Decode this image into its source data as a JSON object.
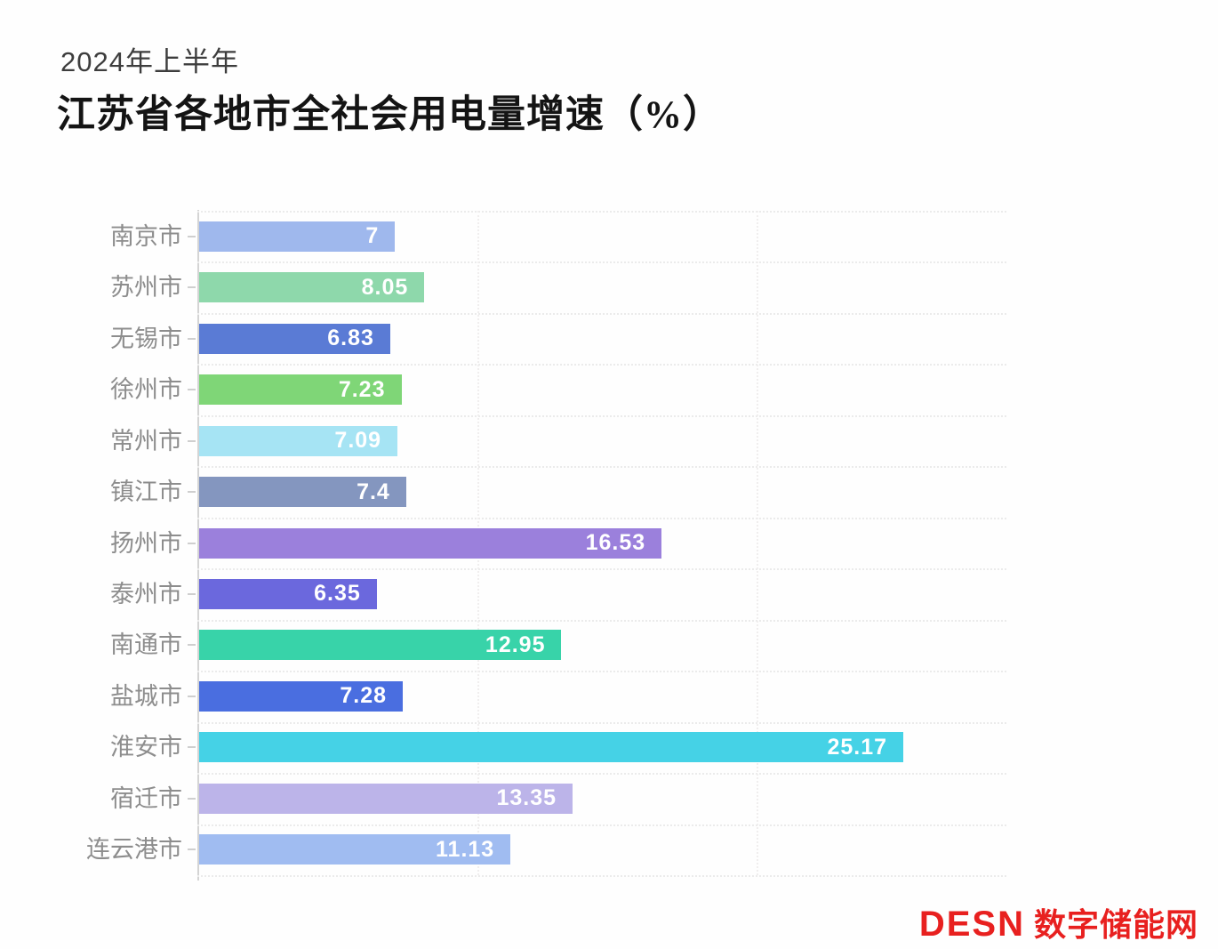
{
  "header": {
    "subtitle": "2024年上半年",
    "title": "江苏省各地市全社会用电量增速（%）"
  },
  "chart_data": {
    "type": "bar",
    "orientation": "horizontal",
    "title": "江苏省各地市全社会用电量增速（%）",
    "subtitle": "2024年上半年",
    "xlabel": "",
    "ylabel": "",
    "categories": [
      "南京市",
      "苏州市",
      "无锡市",
      "徐州市",
      "常州市",
      "镇江市",
      "扬州市",
      "泰州市",
      "南通市",
      "盐城市",
      "淮安市",
      "宿迁市",
      "连云港市"
    ],
    "values": [
      7,
      8.05,
      6.83,
      7.23,
      7.09,
      7.4,
      16.53,
      6.35,
      12.95,
      7.28,
      25.17,
      13.35,
      11.13
    ],
    "value_labels": [
      "7",
      "8.05",
      "6.83",
      "7.23",
      "7.09",
      "7.4",
      "16.53",
      "6.35",
      "12.95",
      "7.28",
      "25.17",
      "13.35",
      "11.13"
    ],
    "bar_colors": [
      "#9fb8ed",
      "#8ed8ab",
      "#5a7bd5",
      "#7fd677",
      "#a6e4f4",
      "#8496bf",
      "#9b80dc",
      "#6b68dd",
      "#38d3a9",
      "#4a6ee0",
      "#45d2e6",
      "#bcb4e9",
      "#a0bcf1"
    ],
    "xlim": [
      0,
      28.92
    ],
    "grid": {
      "vertical_lines_at": [
        10,
        20
      ],
      "horizontal_category_boundaries": true
    },
    "legend": "none",
    "value_label_position": "inside-right",
    "value_label_color": "#ffffff",
    "axis_color": "#d4d4d4",
    "category_label_color": "#8d8d8d"
  },
  "footer": {
    "logo_text": "DESN",
    "logo_suffix": "数字储能网",
    "logo_color": "#e8201f"
  }
}
